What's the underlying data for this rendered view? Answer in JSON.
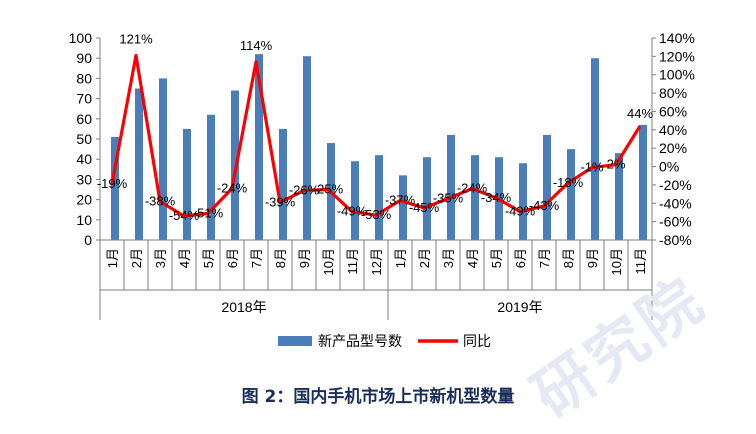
{
  "caption": "图 2：国内手机市场上市新机型数量",
  "watermark": "研究院",
  "colors": {
    "bar": "#4a7ebb",
    "line": "#ff0000",
    "axis": "#7f7f7f",
    "text": "#000000"
  },
  "chart_data": {
    "type": "bar",
    "categories": [
      "1月",
      "2月",
      "3月",
      "4月",
      "5月",
      "6月",
      "7月",
      "8月",
      "9月",
      "10月",
      "11月",
      "12月",
      "1月",
      "2月",
      "3月",
      "4月",
      "5月",
      "6月",
      "7月",
      "8月",
      "9月",
      "10月",
      "11月"
    ],
    "groups": [
      {
        "label": "2018年",
        "count": 12
      },
      {
        "label": "2019年",
        "count": 11
      }
    ],
    "series": [
      {
        "name": "新产品型号数",
        "type": "bar",
        "axis": "left",
        "values": [
          51,
          75,
          80,
          55,
          62,
          74,
          92,
          55,
          91,
          48,
          39,
          42,
          32,
          41,
          52,
          42,
          41,
          38,
          52,
          45,
          90,
          43,
          57
        ]
      },
      {
        "name": "同比",
        "type": "line",
        "axis": "right",
        "values": [
          -19,
          121,
          -38,
          -54,
          -51,
          -24,
          114,
          -39,
          -26,
          -25,
          -49,
          -53,
          -37,
          -45,
          -35,
          -24,
          -34,
          -49,
          -43,
          -18,
          -1,
          2,
          44
        ],
        "labels": [
          "-19%",
          "121%",
          "-38%",
          "-54%",
          "-51%",
          "-24%",
          "114%",
          "-39%",
          "-26%",
          "-25%",
          "-49%",
          "-53%",
          "-37%",
          "-45%",
          "-35%",
          "-24%",
          "-34%",
          "-49%",
          "-43%",
          "-18%",
          "-1%",
          "2%",
          "44%"
        ]
      }
    ],
    "y_left": {
      "min": 0,
      "max": 100,
      "step": 10,
      "ticks": [
        "0",
        "10",
        "20",
        "30",
        "40",
        "50",
        "60",
        "70",
        "80",
        "90",
        "100"
      ]
    },
    "y_right": {
      "min": -80,
      "max": 140,
      "step": 20,
      "ticks": [
        "-80%",
        "-60%",
        "-40%",
        "-20%",
        "0%",
        "20%",
        "40%",
        "60%",
        "80%",
        "100%",
        "120%",
        "140%"
      ]
    },
    "legend": {
      "position": "bottom",
      "items": [
        "新产品型号数",
        "同比"
      ]
    },
    "grid": false
  }
}
